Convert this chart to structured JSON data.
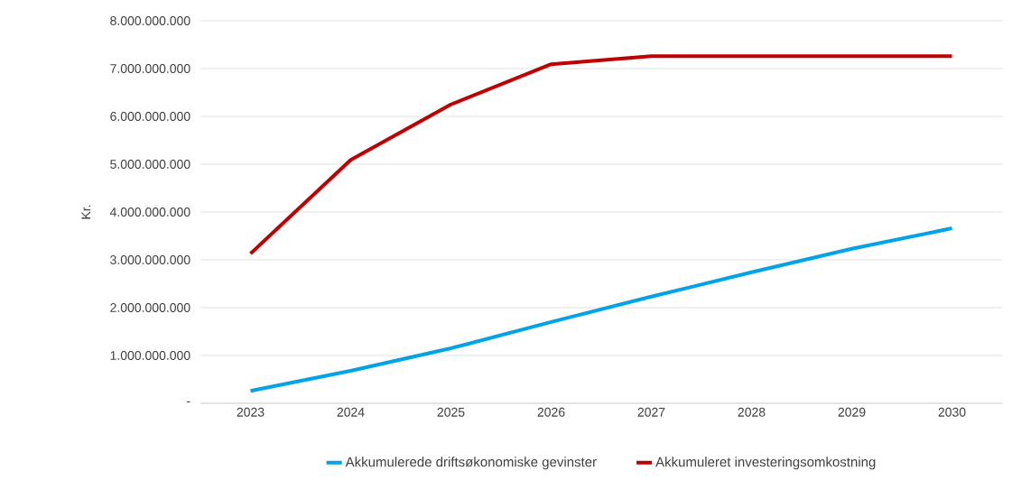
{
  "chart_data": {
    "type": "line",
    "ylabel": "Kr.",
    "categories": [
      "2023",
      "2024",
      "2025",
      "2026",
      "2027",
      "2028",
      "2029",
      "2030"
    ],
    "series": [
      {
        "name": "Akkumulerede driftsøkonomiske gevinster",
        "color": "#00a2e8",
        "values": [
          260000000,
          680000000,
          1150000000,
          1700000000,
          2230000000,
          2740000000,
          3230000000,
          3660000000
        ]
      },
      {
        "name": "Akkumuleret investeringsomkostning",
        "color": "#c00000",
        "values": [
          3130000000,
          5090000000,
          6250000000,
          7090000000,
          7260000000,
          7260000000,
          7260000000,
          7260000000
        ]
      }
    ],
    "ylim": [
      0,
      8000000000
    ],
    "yticks": [
      {
        "value": 0,
        "label": "-"
      },
      {
        "value": 1000000000,
        "label": "1.000.000.000"
      },
      {
        "value": 2000000000,
        "label": "2.000.000.000"
      },
      {
        "value": 3000000000,
        "label": "3.000.000.000"
      },
      {
        "value": 4000000000,
        "label": "4.000.000.000"
      },
      {
        "value": 5000000000,
        "label": "5.000.000.000"
      },
      {
        "value": 6000000000,
        "label": "6.000.000.000"
      },
      {
        "value": 7000000000,
        "label": "7.000.000.000"
      },
      {
        "value": 8000000000,
        "label": "8.000.000.000"
      }
    ],
    "grid": "y",
    "legend": "bottom",
    "marker": "none",
    "line_style": "solid"
  }
}
